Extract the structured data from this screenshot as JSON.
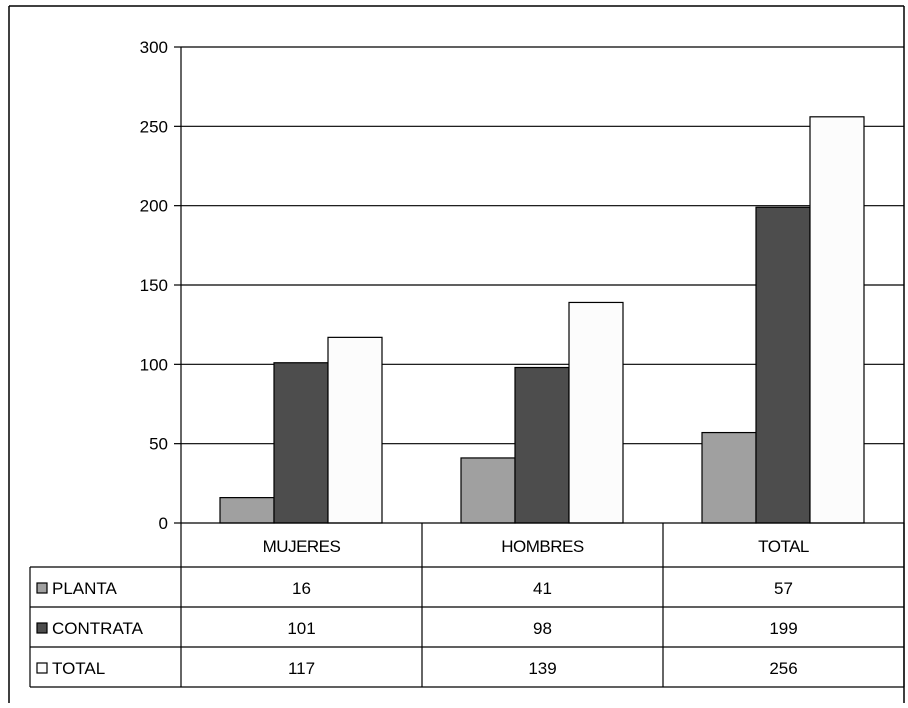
{
  "chart_data": {
    "type": "bar",
    "title": "",
    "xlabel": "",
    "ylabel": "",
    "categories": [
      "MUJERES",
      "HOMBRES",
      "TOTAL"
    ],
    "series": [
      {
        "name": "PLANTA",
        "values": [
          16,
          41,
          57
        ],
        "color": "#a0a0a0"
      },
      {
        "name": "CONTRATA",
        "values": [
          101,
          98,
          199
        ],
        "color": "#4d4d4d"
      },
      {
        "name": "TOTAL",
        "values": [
          117,
          139,
          256
        ],
        "color": "#fcfcfc"
      }
    ],
    "ylim": [
      0,
      300
    ],
    "yticks": [
      0,
      50,
      100,
      150,
      200,
      250,
      300
    ],
    "grid": true,
    "legend": "data-table"
  }
}
